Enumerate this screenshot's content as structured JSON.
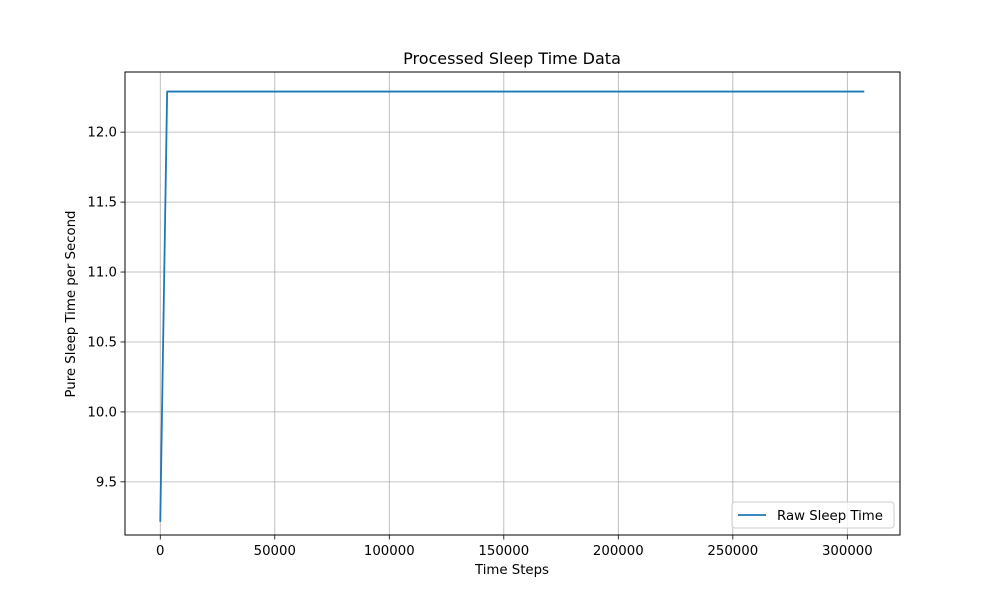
{
  "chart_data": {
    "type": "line",
    "title": "Processed Sleep Time Data",
    "xlabel": "Time Steps",
    "ylabel": "Pure Sleep Time per Second",
    "xlim": [
      -15400,
      323000
    ],
    "ylim": [
      9.12,
      12.43
    ],
    "x_ticks": [
      0,
      50000,
      100000,
      150000,
      200000,
      250000,
      300000
    ],
    "x_tick_labels": [
      "0",
      "50000",
      "100000",
      "150000",
      "200000",
      "250000",
      "300000"
    ],
    "y_ticks": [
      9.5,
      10.0,
      10.5,
      11.0,
      11.5,
      12.0
    ],
    "y_tick_labels": [
      "9.5",
      "10.0",
      "10.5",
      "11.0",
      "11.5",
      "12.0"
    ],
    "grid": true,
    "legend_position": "lower-right",
    "series": [
      {
        "name": "Raw Sleep Time",
        "color": "#1f77b4",
        "x": [
          0,
          3000,
          307000
        ],
        "y": [
          9.22,
          12.29,
          12.29
        ]
      }
    ]
  }
}
